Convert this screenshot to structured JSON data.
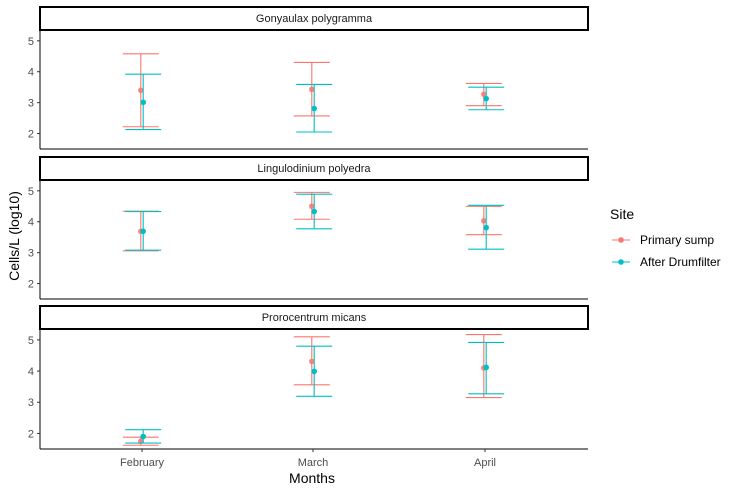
{
  "chart_data": {
    "type": "errorbar",
    "xlabel": "Months",
    "ylabel": "Cells/L (log10)",
    "categories": [
      "February",
      "March",
      "April"
    ],
    "ylim": [
      1.5,
      5.35
    ],
    "yticks": [
      2,
      3,
      4,
      5
    ],
    "grid": false,
    "legend": {
      "title": "Site",
      "placement": "right",
      "entries": [
        {
          "label": "Primary sump",
          "color": "#F8766D"
        },
        {
          "label": "After Drumfilter",
          "color": "#00BFC4"
        }
      ]
    },
    "panels": [
      {
        "strip": "Gonyaulax polygramma",
        "series": [
          {
            "name": "Primary sump",
            "color": "#F8766D",
            "values": [
              3.4,
              3.43,
              3.27
            ],
            "lower": [
              2.22,
              2.57,
              2.9
            ],
            "upper": [
              4.58,
              4.3,
              3.62
            ]
          },
          {
            "name": "After Drumfilter",
            "color": "#00BFC4",
            "values": [
              3.01,
              2.81,
              3.13
            ],
            "lower": [
              2.13,
              2.05,
              2.77
            ],
            "upper": [
              3.92,
              3.59,
              3.5
            ]
          }
        ]
      },
      {
        "strip": "Lingulodinium polyedra",
        "series": [
          {
            "name": "Primary sump",
            "color": "#F8766D",
            "values": [
              3.69,
              4.5,
              4.03
            ],
            "lower": [
              3.06,
              4.08,
              3.58
            ],
            "upper": [
              4.34,
              4.95,
              4.5
            ]
          },
          {
            "name": "After Drumfilter",
            "color": "#00BFC4",
            "values": [
              3.69,
              4.33,
              3.81
            ],
            "lower": [
              3.08,
              3.77,
              3.11
            ],
            "upper": [
              4.33,
              4.89,
              4.53
            ]
          }
        ]
      },
      {
        "strip": "Prorocentrum micans",
        "series": [
          {
            "name": "Primary sump",
            "color": "#F8766D",
            "values": [
              1.75,
              4.31,
              4.1
            ],
            "lower": [
              1.62,
              3.56,
              3.15
            ],
            "upper": [
              1.88,
              5.1,
              5.17
            ]
          },
          {
            "name": "After Drumfilter",
            "color": "#00BFC4",
            "values": [
              1.9,
              3.99,
              4.12
            ],
            "lower": [
              1.69,
              3.19,
              3.27
            ],
            "upper": [
              2.12,
              4.8,
              4.92
            ]
          }
        ]
      }
    ]
  }
}
